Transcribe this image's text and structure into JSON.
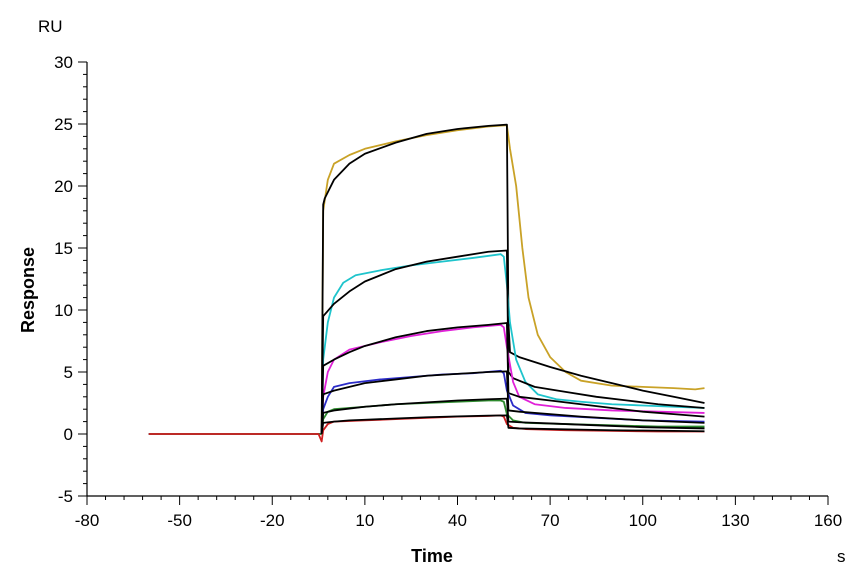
{
  "chart_data": {
    "type": "line",
    "xlabel": "Time",
    "ylabel": "Response",
    "x_unit": "s",
    "y_unit": "RU",
    "xlim": [
      -80,
      160
    ],
    "ylim": [
      -5,
      30
    ],
    "xticks": [
      -80,
      -50,
      -20,
      10,
      40,
      70,
      100,
      130,
      160
    ],
    "yticks": [
      -5,
      0,
      5,
      10,
      15,
      20,
      25,
      30
    ],
    "grid": false,
    "series": [
      {
        "color": "#C9A227",
        "points": [
          [
            -60,
            0
          ],
          [
            -5,
            0
          ],
          [
            -4,
            0
          ],
          [
            -3.5,
            18
          ],
          [
            -2,
            20.5
          ],
          [
            0,
            21.8
          ],
          [
            5,
            22.5
          ],
          [
            10,
            23
          ],
          [
            20,
            23.6
          ],
          [
            30,
            24.1
          ],
          [
            40,
            24.5
          ],
          [
            50,
            24.8
          ],
          [
            56,
            24.9
          ],
          [
            57,
            23
          ],
          [
            59,
            20
          ],
          [
            61,
            15
          ],
          [
            63,
            11
          ],
          [
            66,
            8
          ],
          [
            70,
            6.2
          ],
          [
            75,
            5
          ],
          [
            80,
            4.3
          ],
          [
            90,
            3.9
          ],
          [
            100,
            3.8
          ],
          [
            110,
            3.7
          ],
          [
            117,
            3.6
          ],
          [
            120,
            3.7
          ]
        ]
      },
      {
        "color": "#000000",
        "points": [
          [
            -4,
            0
          ],
          [
            -3.5,
            18.5
          ],
          [
            -3,
            19
          ],
          [
            0,
            20.5
          ],
          [
            5,
            21.8
          ],
          [
            10,
            22.6
          ],
          [
            20,
            23.5
          ],
          [
            30,
            24.2
          ],
          [
            40,
            24.6
          ],
          [
            50,
            24.85
          ],
          [
            56,
            24.95
          ],
          [
            56.5,
            9
          ],
          [
            57,
            6.6
          ],
          [
            60,
            6.2
          ],
          [
            70,
            5.4
          ],
          [
            80,
            4.7
          ],
          [
            90,
            4.1
          ],
          [
            100,
            3.5
          ],
          [
            110,
            3
          ],
          [
            120,
            2.5
          ]
        ]
      },
      {
        "color": "#1FC4CC",
        "points": [
          [
            -60,
            0
          ],
          [
            -5,
            0
          ],
          [
            -4,
            0
          ],
          [
            -3.5,
            6
          ],
          [
            -2,
            9
          ],
          [
            0,
            11
          ],
          [
            3,
            12.2
          ],
          [
            7,
            12.8
          ],
          [
            15,
            13.2
          ],
          [
            25,
            13.6
          ],
          [
            35,
            13.9
          ],
          [
            45,
            14.2
          ],
          [
            54,
            14.5
          ],
          [
            55,
            14.3
          ],
          [
            56,
            12
          ],
          [
            57,
            9
          ],
          [
            59,
            6
          ],
          [
            62,
            4.2
          ],
          [
            66,
            3.2
          ],
          [
            72,
            2.8
          ],
          [
            80,
            2.6
          ],
          [
            90,
            2.4
          ],
          [
            100,
            2.3
          ],
          [
            110,
            2.2
          ],
          [
            120,
            2.1
          ]
        ]
      },
      {
        "color": "#000000",
        "points": [
          [
            -4,
            0
          ],
          [
            -3.5,
            9.5
          ],
          [
            0,
            10.5
          ],
          [
            5,
            11.5
          ],
          [
            10,
            12.3
          ],
          [
            20,
            13.3
          ],
          [
            30,
            13.9
          ],
          [
            40,
            14.3
          ],
          [
            50,
            14.7
          ],
          [
            56,
            14.8
          ],
          [
            56.5,
            5
          ],
          [
            58,
            4.5
          ],
          [
            65,
            3.8
          ],
          [
            75,
            3.4
          ],
          [
            85,
            3
          ],
          [
            95,
            2.7
          ],
          [
            105,
            2.4
          ],
          [
            115,
            2.2
          ],
          [
            120,
            2.1
          ]
        ]
      },
      {
        "color": "#E020D8",
        "points": [
          [
            -60,
            0
          ],
          [
            -5,
            0
          ],
          [
            -4,
            0
          ],
          [
            -3.5,
            3
          ],
          [
            -2,
            5
          ],
          [
            0,
            6
          ],
          [
            5,
            6.8
          ],
          [
            15,
            7.4
          ],
          [
            25,
            7.9
          ],
          [
            35,
            8.3
          ],
          [
            45,
            8.6
          ],
          [
            54,
            8.8
          ],
          [
            55,
            8.6
          ],
          [
            56,
            7
          ],
          [
            58,
            4.2
          ],
          [
            60,
            3
          ],
          [
            65,
            2.4
          ],
          [
            75,
            2.1
          ],
          [
            90,
            1.9
          ],
          [
            105,
            1.8
          ],
          [
            120,
            1.7
          ]
        ]
      },
      {
        "color": "#000000",
        "points": [
          [
            -4,
            0
          ],
          [
            -3.5,
            5.5
          ],
          [
            0,
            6
          ],
          [
            5,
            6.6
          ],
          [
            10,
            7.1
          ],
          [
            20,
            7.8
          ],
          [
            30,
            8.3
          ],
          [
            40,
            8.6
          ],
          [
            50,
            8.8
          ],
          [
            56,
            8.95
          ],
          [
            56.5,
            3.3
          ],
          [
            60,
            3
          ],
          [
            70,
            2.7
          ],
          [
            80,
            2.4
          ],
          [
            90,
            2.1
          ],
          [
            100,
            1.8
          ],
          [
            110,
            1.6
          ],
          [
            120,
            1.4
          ]
        ]
      },
      {
        "color": "#2C2CC8",
        "points": [
          [
            -60,
            0
          ],
          [
            -5,
            0
          ],
          [
            -4,
            0
          ],
          [
            -3.5,
            2
          ],
          [
            -2,
            3
          ],
          [
            0,
            3.8
          ],
          [
            5,
            4.1
          ],
          [
            15,
            4.4
          ],
          [
            25,
            4.6
          ],
          [
            35,
            4.8
          ],
          [
            45,
            4.9
          ],
          [
            54,
            5.1
          ],
          [
            55,
            4.9
          ],
          [
            56,
            3.5
          ],
          [
            58,
            2.3
          ],
          [
            62,
            1.7
          ],
          [
            70,
            1.5
          ],
          [
            85,
            1.3
          ],
          [
            100,
            1.1
          ],
          [
            120,
            1
          ]
        ]
      },
      {
        "color": "#000000",
        "points": [
          [
            -4,
            0
          ],
          [
            -3.5,
            3.2
          ],
          [
            0,
            3.5
          ],
          [
            5,
            3.8
          ],
          [
            10,
            4.1
          ],
          [
            20,
            4.4
          ],
          [
            30,
            4.7
          ],
          [
            40,
            4.85
          ],
          [
            50,
            5
          ],
          [
            56,
            5.05
          ],
          [
            56.5,
            1.9
          ],
          [
            60,
            1.8
          ],
          [
            70,
            1.6
          ],
          [
            80,
            1.4
          ],
          [
            90,
            1.25
          ],
          [
            100,
            1.1
          ],
          [
            110,
            1
          ],
          [
            120,
            0.9
          ]
        ]
      },
      {
        "color": "#2E8B2E",
        "points": [
          [
            -60,
            0
          ],
          [
            -5,
            0
          ],
          [
            -4,
            0
          ],
          [
            -3.5,
            1.2
          ],
          [
            -2,
            1.8
          ],
          [
            0,
            2
          ],
          [
            10,
            2.2
          ],
          [
            20,
            2.4
          ],
          [
            30,
            2.5
          ],
          [
            40,
            2.6
          ],
          [
            50,
            2.7
          ],
          [
            54,
            2.7
          ],
          [
            55,
            2.6
          ],
          [
            56,
            1.6
          ],
          [
            58,
            1.1
          ],
          [
            62,
            0.9
          ],
          [
            75,
            0.8
          ],
          [
            90,
            0.7
          ],
          [
            105,
            0.6
          ],
          [
            120,
            0.6
          ]
        ]
      },
      {
        "color": "#000000",
        "points": [
          [
            -4,
            0
          ],
          [
            -3.5,
            1.7
          ],
          [
            0,
            1.9
          ],
          [
            5,
            2.05
          ],
          [
            10,
            2.2
          ],
          [
            20,
            2.4
          ],
          [
            30,
            2.55
          ],
          [
            40,
            2.7
          ],
          [
            50,
            2.8
          ],
          [
            56,
            2.85
          ],
          [
            56.5,
            1
          ],
          [
            60,
            0.95
          ],
          [
            70,
            0.85
          ],
          [
            80,
            0.75
          ],
          [
            90,
            0.65
          ],
          [
            100,
            0.55
          ],
          [
            110,
            0.5
          ],
          [
            120,
            0.45
          ]
        ]
      },
      {
        "color": "#D02020",
        "points": [
          [
            -60,
            0
          ],
          [
            -5,
            0
          ],
          [
            -4,
            -0.6
          ],
          [
            -3.5,
            0.3
          ],
          [
            -2,
            0.8
          ],
          [
            0,
            1
          ],
          [
            10,
            1.1
          ],
          [
            20,
            1.2
          ],
          [
            30,
            1.3
          ],
          [
            40,
            1.4
          ],
          [
            50,
            1.45
          ],
          [
            54,
            1.5
          ],
          [
            55,
            1.4
          ],
          [
            56,
            0.8
          ],
          [
            58,
            0.5
          ],
          [
            62,
            0.4
          ],
          [
            75,
            0.3
          ],
          [
            90,
            0.25
          ],
          [
            105,
            0.2
          ],
          [
            120,
            0.2
          ]
        ]
      },
      {
        "color": "#000000",
        "points": [
          [
            -4,
            0
          ],
          [
            -3.5,
            0.9
          ],
          [
            0,
            1
          ],
          [
            5,
            1.1
          ],
          [
            10,
            1.15
          ],
          [
            20,
            1.25
          ],
          [
            30,
            1.35
          ],
          [
            40,
            1.42
          ],
          [
            50,
            1.48
          ],
          [
            56,
            1.5
          ],
          [
            56.5,
            0.5
          ],
          [
            60,
            0.45
          ],
          [
            70,
            0.4
          ],
          [
            80,
            0.35
          ],
          [
            90,
            0.3
          ],
          [
            100,
            0.28
          ],
          [
            110,
            0.25
          ],
          [
            120,
            0.22
          ]
        ]
      }
    ]
  }
}
